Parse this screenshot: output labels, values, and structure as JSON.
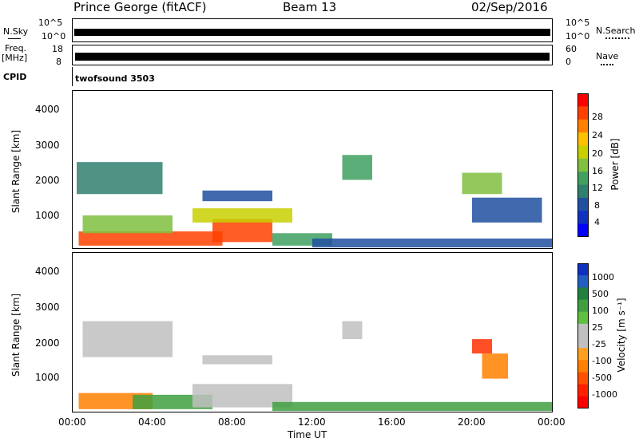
{
  "header": {
    "station": "Prince George (fitACF)",
    "beam": "Beam 13",
    "date": "02/Sep/2016"
  },
  "panels": {
    "nsky_label": "N.Sky",
    "nsky_ticks": [
      "10^5",
      "10^0"
    ],
    "nsearch_label": "N.Search",
    "nsearch_ticks": [
      "10^5",
      "10^0"
    ],
    "freq_label_1": "Freq.",
    "freq_label_2": "[MHz]",
    "freq_ticks": [
      "18",
      "8"
    ],
    "nave_label": "Nave",
    "nave_ticks": [
      "60",
      "0"
    ],
    "cpid_label": "CPID",
    "cpid_value": "twofsound 3503"
  },
  "colorbars": {
    "power": {
      "label": "Power [dB]",
      "ticks": [
        "28",
        "24",
        "20",
        "16",
        "12",
        "8",
        "4"
      ],
      "colors": [
        "#ff0000",
        "#ff4000",
        "#ff8000",
        "#ffc000",
        "#c8d000",
        "#80c040",
        "#40a060",
        "#308070",
        "#2050a0",
        "#1030c0",
        "#0000ff"
      ]
    },
    "velocity": {
      "label": "Velocity [m s⁻¹]",
      "ticks": [
        "1000",
        "500",
        "100",
        "25",
        "-25",
        "-100",
        "-500",
        "-1000"
      ],
      "colors": [
        "#1030c0",
        "#2060c0",
        "#208040",
        "#40a040",
        "#60c040",
        "#c0c0c0",
        "#c0c0c0",
        "#ffa020",
        "#ff8000",
        "#ff5000",
        "#ff2000",
        "#ff0000"
      ]
    }
  },
  "chart_data": [
    {
      "type": "heatmap",
      "title": "Power",
      "ylabel": "Slant Range [km]",
      "xlabel": "",
      "ylim": [
        180,
        4600
      ],
      "yticks": [
        "1000",
        "2000",
        "3000",
        "4000"
      ],
      "xticks": [
        "00:00",
        "04:00",
        "08:00",
        "12:00",
        "16:00",
        "20:00",
        "00:00"
      ],
      "colorbar_range": [
        0,
        30
      ],
      "regions": [
        {
          "t0": 0.3,
          "t1": 7.5,
          "r0": 250,
          "r1": 650,
          "value": 28
        },
        {
          "t0": 7.0,
          "t1": 10.0,
          "r0": 350,
          "r1": 1000,
          "value": 26
        },
        {
          "t0": 0.5,
          "t1": 5.0,
          "r0": 600,
          "r1": 1100,
          "value": 16
        },
        {
          "t0": 6.0,
          "t1": 11.0,
          "r0": 900,
          "r1": 1300,
          "value": 18
        },
        {
          "t0": 0.2,
          "t1": 4.5,
          "r0": 1700,
          "r1": 2600,
          "value": 10
        },
        {
          "t0": 6.5,
          "t1": 10.0,
          "r0": 1500,
          "r1": 1800,
          "value": 7
        },
        {
          "t0": 10.0,
          "t1": 13.0,
          "r0": 250,
          "r1": 600,
          "value": 12
        },
        {
          "t0": 13.5,
          "t1": 15.0,
          "r0": 2100,
          "r1": 2800,
          "value": 11
        },
        {
          "t0": 19.5,
          "t1": 21.5,
          "r0": 1700,
          "r1": 2300,
          "value": 16
        },
        {
          "t0": 20.0,
          "t1": 23.5,
          "r0": 900,
          "r1": 1600,
          "value": 6
        },
        {
          "t0": 12.0,
          "t1": 24.0,
          "r0": 200,
          "r1": 450,
          "value": 6
        }
      ]
    },
    {
      "type": "heatmap",
      "title": "Velocity",
      "ylabel": "Slant Range [km]",
      "xlabel": "Time UT",
      "ylim": [
        180,
        4600
      ],
      "yticks": [
        "1000",
        "2000",
        "3000",
        "4000"
      ],
      "xticks": [
        "00:00",
        "04:00",
        "08:00",
        "12:00",
        "16:00",
        "20:00",
        "00:00"
      ],
      "colorbar_range": [
        -1000,
        1000
      ],
      "regions": [
        {
          "t0": 0.3,
          "t1": 4.0,
          "r0": 250,
          "r1": 700,
          "value": -100
        },
        {
          "t0": 3.0,
          "t1": 7.0,
          "r0": 250,
          "r1": 650,
          "value": 100
        },
        {
          "t0": 6.0,
          "t1": 11.0,
          "r0": 300,
          "r1": 950,
          "value": 0
        },
        {
          "t0": 0.5,
          "t1": 5.0,
          "r0": 1700,
          "r1": 2700,
          "value": 0
        },
        {
          "t0": 6.5,
          "t1": 10.0,
          "r0": 1500,
          "r1": 1750,
          "value": 0
        },
        {
          "t0": 13.5,
          "t1": 14.5,
          "r0": 2200,
          "r1": 2700,
          "value": 0
        },
        {
          "t0": 20.0,
          "t1": 21.0,
          "r0": 1800,
          "r1": 2200,
          "value": -500
        },
        {
          "t0": 20.5,
          "t1": 21.8,
          "r0": 1100,
          "r1": 1800,
          "value": -100
        },
        {
          "t0": 10.0,
          "t1": 24.0,
          "r0": 200,
          "r1": 450,
          "value": 100
        }
      ]
    }
  ]
}
